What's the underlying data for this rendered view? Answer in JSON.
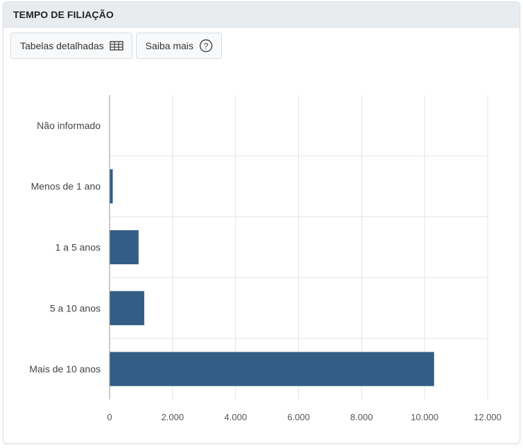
{
  "panel": {
    "title": "TEMPO DE FILIAÇÃO"
  },
  "toolbar": {
    "tables_label": "Tabelas detalhadas",
    "tables_icon": "table-icon",
    "help_label": "Saiba mais",
    "help_icon": "question-circle-icon"
  },
  "colors": {
    "bar": "#335d84",
    "grid": "#e4e4e4",
    "axis": "#999999",
    "header_bg": "#e9ecef"
  },
  "chart_data": {
    "type": "bar",
    "orientation": "horizontal",
    "categories": [
      "Não informado",
      "Menos de 1 ano",
      "1 a 5 anos",
      "5 a 10 anos",
      "Mais de 10 anos"
    ],
    "values": [
      0,
      100,
      920,
      1100,
      10300
    ],
    "xlim": [
      0,
      12000
    ],
    "x_ticks": [
      0,
      2000,
      4000,
      6000,
      8000,
      10000,
      12000
    ],
    "x_tick_labels": [
      "0",
      "2.000",
      "4.000",
      "6.000",
      "8.000",
      "10.000",
      "12.000"
    ],
    "grid": true,
    "legend": "none"
  }
}
